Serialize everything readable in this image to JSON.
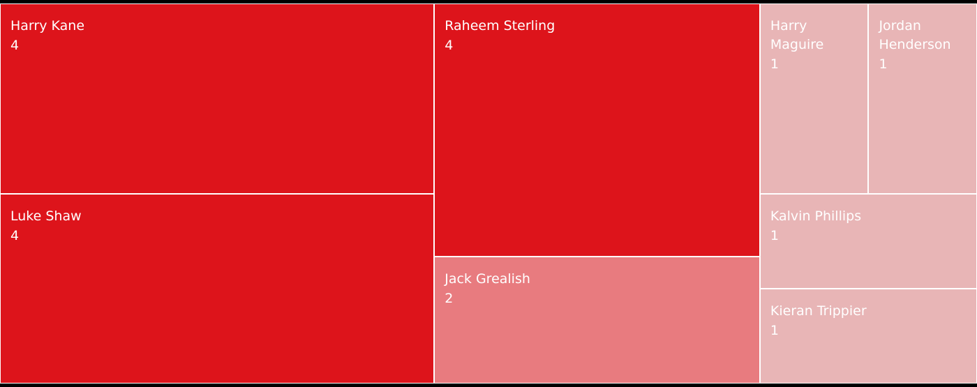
{
  "chart_data": {
    "type": "treemap",
    "categories": [
      "Harry Kane",
      "Luke Shaw",
      "Raheem Sterling",
      "Jack Grealish",
      "Harry Maguire",
      "Jordan Henderson",
      "Kalvin Phillips",
      "Kieran Trippier"
    ],
    "values": [
      4,
      4,
      4,
      2,
      1,
      1,
      1,
      1
    ],
    "colors": [
      "#dd141b",
      "#dd141b",
      "#dd141b",
      "#e87b7f",
      "#e8b5b6",
      "#e8b5b6",
      "#e8b5b6",
      "#e8b5b6"
    ]
  }
}
